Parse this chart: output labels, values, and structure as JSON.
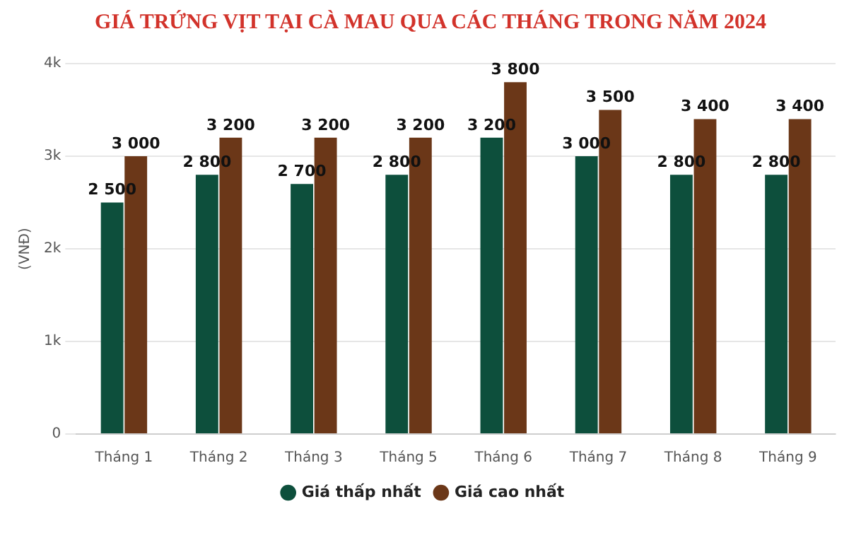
{
  "chart_data": {
    "type": "bar",
    "title": "GIÁ TRỨNG VỊT TẠI CÀ MAU QUA CÁC THÁNG TRONG NĂM 2024",
    "ylabel": "(VNĐ)",
    "categories": [
      "Tháng 1",
      "Tháng 2",
      "Tháng 3",
      "Tháng 5",
      "Tháng 6",
      "Tháng 7",
      "Tháng 8",
      "Tháng 9"
    ],
    "series": [
      {
        "name": "Giá thấp nhất",
        "color": "#0d4f3c",
        "values": [
          2500,
          2800,
          2700,
          2800,
          3200,
          3000,
          2800,
          2800
        ],
        "value_labels": [
          "2 500",
          "2 800",
          "2 700",
          "2 800",
          "3 200",
          "3 000",
          "2 800",
          "2 800"
        ]
      },
      {
        "name": "Giá cao nhất",
        "color": "#6b3718",
        "values": [
          3000,
          3200,
          3200,
          3200,
          3800,
          3500,
          3400,
          3400
        ],
        "value_labels": [
          "3 000",
          "3 200",
          "3 200",
          "3 200",
          "3 800",
          "3 500",
          "3 400",
          "3 400"
        ]
      }
    ],
    "ylim": [
      0,
      4000
    ],
    "yticks": [
      0,
      {
        "value": 1000,
        "label": "1k"
      },
      {
        "value": 2000,
        "label": "2k"
      },
      {
        "value": 3000,
        "label": "3k"
      },
      {
        "value": 4000,
        "label": "4k"
      }
    ],
    "grid": "y",
    "legend": "bottom"
  }
}
